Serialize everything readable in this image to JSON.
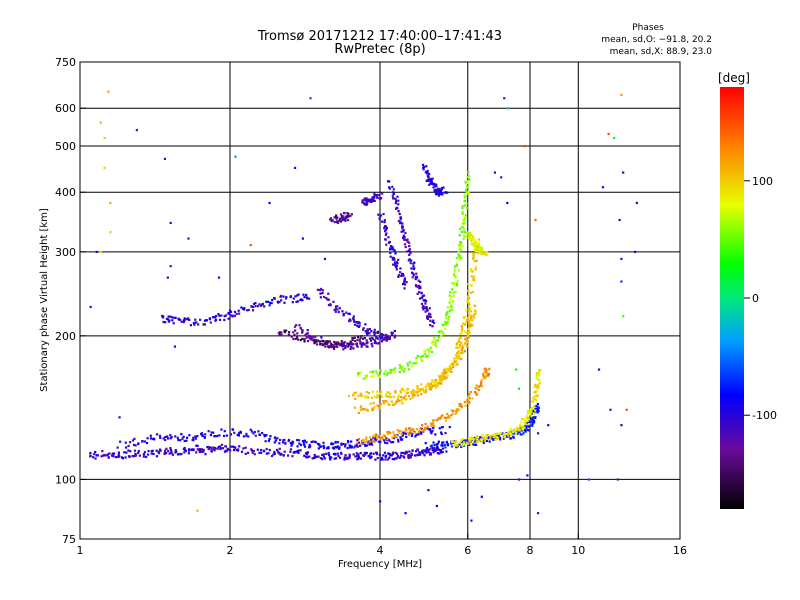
{
  "chart_data": {
    "type": "scatter",
    "title": "Tromsø 20171212 17:40:00–17:41:43",
    "subtitle": "RwPretec (8p)",
    "xlabel": "Frequency [MHz]",
    "ylabel": "Stationary phase Virtual Height [km]",
    "x_scale": "log",
    "y_scale": "log",
    "xlim": [
      1,
      16
    ],
    "ylim": [
      75,
      750
    ],
    "x_ticks": [
      1,
      2,
      4,
      6,
      8,
      10,
      16
    ],
    "y_ticks": [
      75,
      100,
      200,
      300,
      400,
      500,
      600,
      750
    ],
    "x_gridlines": [
      2,
      4,
      6,
      8,
      10
    ],
    "y_gridlines": [
      100,
      200,
      300,
      400,
      500,
      600
    ],
    "grid": true,
    "stats": {
      "heading": "Phases",
      "line_o": "mean, sd,O: −91.8, 20.2",
      "line_x": "mean, sd,X:  88.9, 23.0"
    },
    "colorbar": {
      "label": "[deg]",
      "range": [
        -180,
        180
      ],
      "ticks": [
        100,
        0,
        -100
      ],
      "placement": "right"
    },
    "traces": [
      {
        "name_hidden": true,
        "points": [
          [
            1.05,
            112
          ],
          [
            1.12,
            113
          ],
          [
            1.2,
            112
          ],
          [
            1.3,
            114
          ],
          [
            1.4,
            113
          ],
          [
            1.5,
            115
          ],
          [
            1.6,
            114
          ],
          [
            1.7,
            116
          ],
          [
            1.8,
            115
          ],
          [
            1.9,
            117
          ],
          [
            2.0,
            116
          ],
          [
            2.2,
            115
          ],
          [
            2.4,
            114
          ],
          [
            2.6,
            114
          ],
          [
            2.8,
            113
          ],
          [
            3.0,
            112
          ],
          [
            3.2,
            112
          ],
          [
            3.4,
            112
          ],
          [
            3.6,
            112
          ],
          [
            3.8,
            112
          ],
          [
            4.0,
            112
          ],
          [
            4.2,
            112
          ],
          [
            4.4,
            112
          ],
          [
            4.6,
            113
          ],
          [
            4.8,
            114
          ],
          [
            5.0,
            114
          ],
          [
            5.2,
            115
          ],
          [
            5.4,
            116
          ]
        ],
        "phase": -105
      },
      {
        "name_hidden": true,
        "points": [
          [
            1.2,
            118
          ],
          [
            1.35,
            121
          ],
          [
            1.5,
            123
          ],
          [
            1.65,
            122
          ],
          [
            1.8,
            124
          ],
          [
            2.0,
            126
          ],
          [
            2.2,
            125
          ],
          [
            2.4,
            122
          ],
          [
            2.6,
            120
          ],
          [
            2.8,
            119
          ],
          [
            3.0,
            118
          ],
          [
            3.2,
            118
          ],
          [
            3.4,
            118
          ],
          [
            3.6,
            119
          ],
          [
            3.8,
            120
          ],
          [
            4.0,
            121
          ],
          [
            4.3,
            122
          ],
          [
            4.6,
            124
          ],
          [
            5.0,
            126
          ],
          [
            5.5,
            127
          ]
        ],
        "phase": -95
      },
      {
        "name_hidden": true,
        "points": [
          [
            5.0,
            118
          ],
          [
            5.3,
            118
          ],
          [
            5.6,
            118
          ],
          [
            5.9,
            119
          ],
          [
            6.2,
            120
          ],
          [
            6.5,
            121
          ],
          [
            6.8,
            122
          ],
          [
            7.1,
            123
          ],
          [
            7.4,
            124
          ],
          [
            7.7,
            126
          ],
          [
            7.9,
            129
          ],
          [
            8.1,
            133
          ],
          [
            8.2,
            138
          ],
          [
            8.3,
            142
          ]
        ],
        "phase": -80
      },
      {
        "name_hidden": true,
        "points": [
          [
            5.6,
            119
          ],
          [
            5.9,
            120
          ],
          [
            6.2,
            121
          ],
          [
            6.5,
            122
          ],
          [
            6.8,
            123
          ],
          [
            7.1,
            124
          ],
          [
            7.4,
            126
          ],
          [
            7.7,
            129
          ],
          [
            7.9,
            134
          ],
          [
            8.1,
            140
          ],
          [
            8.2,
            150
          ],
          [
            8.3,
            160
          ],
          [
            8.35,
            170
          ]
        ],
        "phase": 90
      },
      {
        "name_hidden": true,
        "points": [
          [
            3.6,
            120
          ],
          [
            3.9,
            122
          ],
          [
            4.2,
            124
          ],
          [
            4.5,
            126
          ],
          [
            4.8,
            128
          ],
          [
            5.1,
            131
          ],
          [
            5.4,
            135
          ],
          [
            5.7,
            140
          ],
          [
            6.0,
            146
          ],
          [
            6.3,
            155
          ],
          [
            6.5,
            165
          ],
          [
            6.6,
            172
          ]
        ],
        "phase": 120
      },
      {
        "name_hidden": true,
        "points": [
          [
            3.6,
            140
          ],
          [
            3.9,
            142
          ],
          [
            4.2,
            145
          ],
          [
            4.5,
            148
          ],
          [
            4.8,
            152
          ],
          [
            5.1,
            157
          ],
          [
            5.3,
            163
          ],
          [
            5.5,
            170
          ],
          [
            5.7,
            178
          ],
          [
            5.9,
            188
          ],
          [
            6.0,
            200
          ],
          [
            6.1,
            215
          ],
          [
            6.2,
            230
          ]
        ],
        "phase": 110
      },
      {
        "name_hidden": true,
        "points": [
          [
            3.5,
            150
          ],
          [
            3.8,
            150
          ],
          [
            4.1,
            151
          ],
          [
            4.4,
            152
          ],
          [
            4.7,
            154
          ],
          [
            5.0,
            157
          ],
          [
            5.3,
            162
          ],
          [
            5.5,
            170
          ],
          [
            5.7,
            180
          ],
          [
            5.8,
            195
          ],
          [
            5.9,
            210
          ],
          [
            6.0,
            230
          ],
          [
            6.1,
            260
          ],
          [
            6.2,
            290
          ],
          [
            6.3,
            320
          ]
        ],
        "phase": 100
      },
      {
        "name_hidden": true,
        "points": [
          [
            3.6,
            165
          ],
          [
            3.9,
            166
          ],
          [
            4.2,
            168
          ],
          [
            4.5,
            172
          ],
          [
            4.8,
            178
          ],
          [
            5.0,
            186
          ],
          [
            5.2,
            196
          ],
          [
            5.4,
            210
          ],
          [
            5.5,
            226
          ],
          [
            5.6,
            246
          ],
          [
            5.7,
            270
          ],
          [
            5.8,
            300
          ],
          [
            5.85,
            330
          ],
          [
            5.9,
            360
          ],
          [
            5.95,
            400
          ],
          [
            6.0,
            440
          ]
        ],
        "phase": 60
      },
      {
        "name_hidden": true,
        "points": [
          [
            2.7,
            210
          ],
          [
            2.9,
            200
          ],
          [
            3.1,
            194
          ],
          [
            3.3,
            190
          ],
          [
            3.5,
            190
          ],
          [
            3.7,
            192
          ],
          [
            3.9,
            195
          ],
          [
            4.1,
            198
          ],
          [
            4.3,
            202
          ]
        ],
        "phase": -120
      },
      {
        "name_hidden": true,
        "points": [
          [
            2.5,
            205
          ],
          [
            2.7,
            200
          ],
          [
            2.9,
            196
          ],
          [
            3.1,
            193
          ],
          [
            3.3,
            192
          ],
          [
            3.5,
            194
          ],
          [
            3.7,
            198
          ]
        ],
        "phase": -145
      },
      {
        "name_hidden": true,
        "points": [
          [
            3.0,
            250
          ],
          [
            3.2,
            235
          ],
          [
            3.4,
            222
          ],
          [
            3.6,
            212
          ],
          [
            3.8,
            205
          ],
          [
            4.0,
            200
          ],
          [
            4.2,
            198
          ]
        ],
        "phase": -110
      },
      {
        "name_hidden": true,
        "points": [
          [
            1.45,
            218
          ],
          [
            1.55,
            216
          ],
          [
            1.65,
            214
          ],
          [
            1.8,
            215
          ],
          [
            1.95,
            220
          ],
          [
            2.1,
            226
          ],
          [
            2.3,
            232
          ],
          [
            2.5,
            238
          ],
          [
            2.7,
            240
          ],
          [
            2.9,
            242
          ]
        ],
        "phase": -100
      },
      {
        "name_hidden": true,
        "points": [
          [
            4.2,
            420
          ],
          [
            4.3,
            380
          ],
          [
            4.4,
            345
          ],
          [
            4.5,
            315
          ],
          [
            4.6,
            290
          ],
          [
            4.7,
            268
          ],
          [
            4.8,
            250
          ],
          [
            4.9,
            235
          ],
          [
            5.0,
            222
          ],
          [
            5.1,
            212
          ]
        ],
        "phase": -110
      },
      {
        "name_hidden": true,
        "points": [
          [
            4.9,
            450
          ],
          [
            5.0,
            430
          ],
          [
            5.1,
            415
          ],
          [
            5.2,
            400
          ],
          [
            5.3,
            400
          ],
          [
            5.4,
            405
          ]
        ],
        "phase": -100
      },
      {
        "name_hidden": true,
        "points": [
          [
            4.0,
            360
          ],
          [
            4.1,
            330
          ],
          [
            4.2,
            305
          ],
          [
            4.3,
            285
          ],
          [
            4.4,
            268
          ],
          [
            4.5,
            255
          ]
        ],
        "phase": -105
      },
      {
        "name_hidden": true,
        "points": [
          [
            3.2,
            350
          ],
          [
            3.3,
            352
          ],
          [
            3.4,
            355
          ],
          [
            3.5,
            360
          ]
        ],
        "phase": -130
      },
      {
        "name_hidden": true,
        "points": [
          [
            3.7,
            380
          ],
          [
            3.8,
            385
          ],
          [
            3.9,
            390
          ],
          [
            4.0,
            392
          ]
        ],
        "phase": -115
      },
      {
        "name_hidden": true,
        "points": [
          [
            6.0,
            330
          ],
          [
            6.1,
            320
          ],
          [
            6.2,
            312
          ],
          [
            6.3,
            305
          ],
          [
            6.4,
            300
          ],
          [
            6.5,
            298
          ]
        ],
        "phase": 80
      }
    ],
    "scatter": [
      [
        1.1,
        300,
        90
      ],
      [
        1.15,
        380,
        110
      ],
      [
        1.12,
        450,
        100
      ],
      [
        1.14,
        650,
        120
      ],
      [
        1.1,
        560,
        110
      ],
      [
        1.12,
        520,
        100
      ],
      [
        1.15,
        330,
        100
      ],
      [
        1.3,
        540,
        -120
      ],
      [
        1.48,
        470,
        -110
      ],
      [
        1.52,
        345,
        -105
      ],
      [
        1.52,
        280,
        -110
      ],
      [
        1.5,
        265,
        -105
      ],
      [
        1.55,
        190,
        -100
      ],
      [
        1.08,
        300,
        -105
      ],
      [
        1.05,
        230,
        -110
      ],
      [
        1.25,
        115,
        -100
      ],
      [
        1.2,
        135,
        -105
      ],
      [
        1.65,
        320,
        -110
      ],
      [
        1.9,
        265,
        -100
      ],
      [
        1.72,
        86,
        110
      ],
      [
        2.05,
        475,
        -40
      ],
      [
        2.7,
        450,
        -80
      ],
      [
        2.8,
        320,
        -85
      ],
      [
        2.9,
        630,
        -60
      ],
      [
        2.4,
        380,
        -90
      ],
      [
        3.1,
        290,
        -105
      ],
      [
        4.0,
        90,
        -80
      ],
      [
        4.5,
        85,
        -85
      ],
      [
        5.0,
        95,
        -95
      ],
      [
        5.2,
        88,
        -90
      ],
      [
        6.1,
        82,
        -100
      ],
      [
        6.4,
        92,
        -85
      ],
      [
        7.1,
        630,
        -70
      ],
      [
        7.2,
        600,
        -20
      ],
      [
        7.2,
        380,
        -90
      ],
      [
        7.0,
        430,
        -120
      ],
      [
        6.8,
        440,
        -100
      ],
      [
        7.8,
        500,
        160
      ],
      [
        8.2,
        350,
        140
      ],
      [
        7.5,
        170,
        30
      ],
      [
        7.6,
        155,
        20
      ],
      [
        11.2,
        410,
        -100
      ],
      [
        11.5,
        530,
        150
      ],
      [
        11.8,
        520,
        30
      ],
      [
        12.2,
        640,
        120
      ],
      [
        12.3,
        440,
        -80
      ],
      [
        12.1,
        350,
        -100
      ],
      [
        12.2,
        290,
        -110
      ],
      [
        12.2,
        260,
        -70
      ],
      [
        12.3,
        220,
        40
      ],
      [
        12.5,
        140,
        150
      ],
      [
        12.2,
        130,
        -100
      ],
      [
        13.1,
        380,
        -100
      ],
      [
        13.0,
        300,
        -80
      ],
      [
        11.0,
        170,
        -100
      ],
      [
        11.6,
        140,
        -110
      ],
      [
        12.0,
        100,
        -120
      ],
      [
        10.5,
        100,
        -60
      ],
      [
        8.7,
        130,
        -80
      ],
      [
        8.3,
        125,
        -110
      ],
      [
        7.6,
        100,
        -80
      ],
      [
        7.9,
        102,
        -90
      ],
      [
        8.3,
        85,
        -110
      ],
      [
        2.2,
        310,
        150
      ],
      [
        1.95,
        220,
        -95
      ]
    ]
  }
}
